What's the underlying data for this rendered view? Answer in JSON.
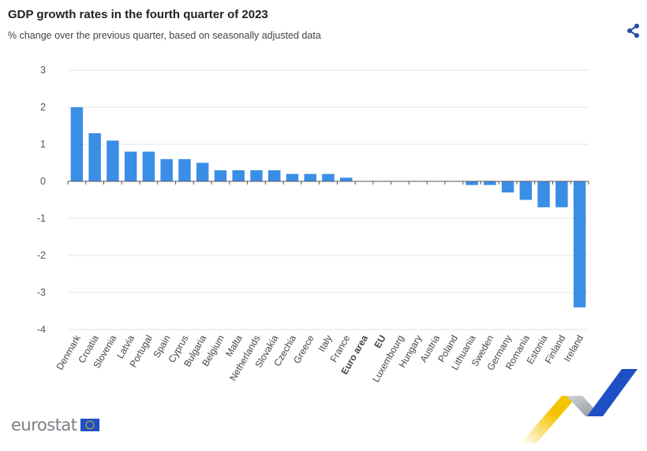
{
  "header": {
    "title": "GDP growth rates in the fourth quarter of 2023",
    "subtitle": "% change over the previous quarter, based on seasonally adjusted data"
  },
  "icons": {
    "share": "share-icon",
    "flag": "eu-flag-icon"
  },
  "brand": {
    "name": "eurostat"
  },
  "colors": {
    "bar": "#3a8ee6",
    "grid": "#e6e6e6",
    "axis": "#555555",
    "brand_blue": "#1f4fc4",
    "brand_yellow": "#f5c400",
    "brand_grey": "#b8bdc4"
  },
  "chart_data": {
    "type": "bar",
    "title": "GDP growth rates in the fourth quarter of 2023",
    "subtitle": "% change over the previous quarter, based on seasonally adjusted data",
    "xlabel": "",
    "ylabel": "",
    "ylim": [
      -4,
      3
    ],
    "yticks": [
      3,
      2,
      1,
      0,
      -1,
      -2,
      -3,
      -4
    ],
    "grid": true,
    "legend": "none",
    "categories": [
      "Denmark",
      "Croatia",
      "Slovenia",
      "Latvia",
      "Portugal",
      "Spain",
      "Cyprus",
      "Bulgaria",
      "Belgium",
      "Malta",
      "Netherlands",
      "Slovakia",
      "Czechia",
      "Greece",
      "Italy",
      "France",
      "Euro area",
      "EU",
      "Luxembourg",
      "Hungary",
      "Austria",
      "Poland",
      "Lithuania",
      "Sweden",
      "Germany",
      "Romania",
      "Estonia",
      "Finland",
      "Ireland"
    ],
    "bold_categories": [
      "Euro area",
      "EU"
    ],
    "values": [
      2.0,
      1.3,
      1.1,
      0.8,
      0.8,
      0.6,
      0.6,
      0.5,
      0.3,
      0.3,
      0.3,
      0.3,
      0.2,
      0.2,
      0.2,
      0.1,
      0.0,
      0.0,
      0.0,
      0.0,
      0.0,
      0.0,
      -0.1,
      -0.1,
      -0.3,
      -0.5,
      -0.7,
      -0.7,
      -3.4
    ]
  }
}
